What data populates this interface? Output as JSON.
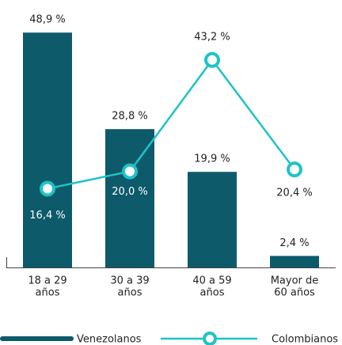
{
  "chart_data": {
    "type": "bar_line",
    "categories": [
      [
        "18 a 29",
        "años"
      ],
      [
        "30 a 39",
        "años"
      ],
      [
        "40 a 59",
        "años"
      ],
      [
        "Mayor de",
        "60 años"
      ]
    ],
    "ylim": [
      0,
      50
    ],
    "series": [
      {
        "name": "Venezolanos",
        "type": "bar",
        "color": "#0d5a6b",
        "values": [
          48.9,
          28.8,
          19.9,
          2.4
        ],
        "value_labels": [
          "48,9 %",
          "28,8 %",
          "19,9 %",
          "2,4 %"
        ]
      },
      {
        "name": "Colombianos",
        "type": "line",
        "color": "#1ec3c6",
        "values": [
          16.4,
          20.0,
          43.2,
          20.4
        ],
        "value_labels": [
          "16,4 %",
          "20,0 %",
          "43,2 %",
          "20,4 %"
        ]
      }
    ]
  }
}
